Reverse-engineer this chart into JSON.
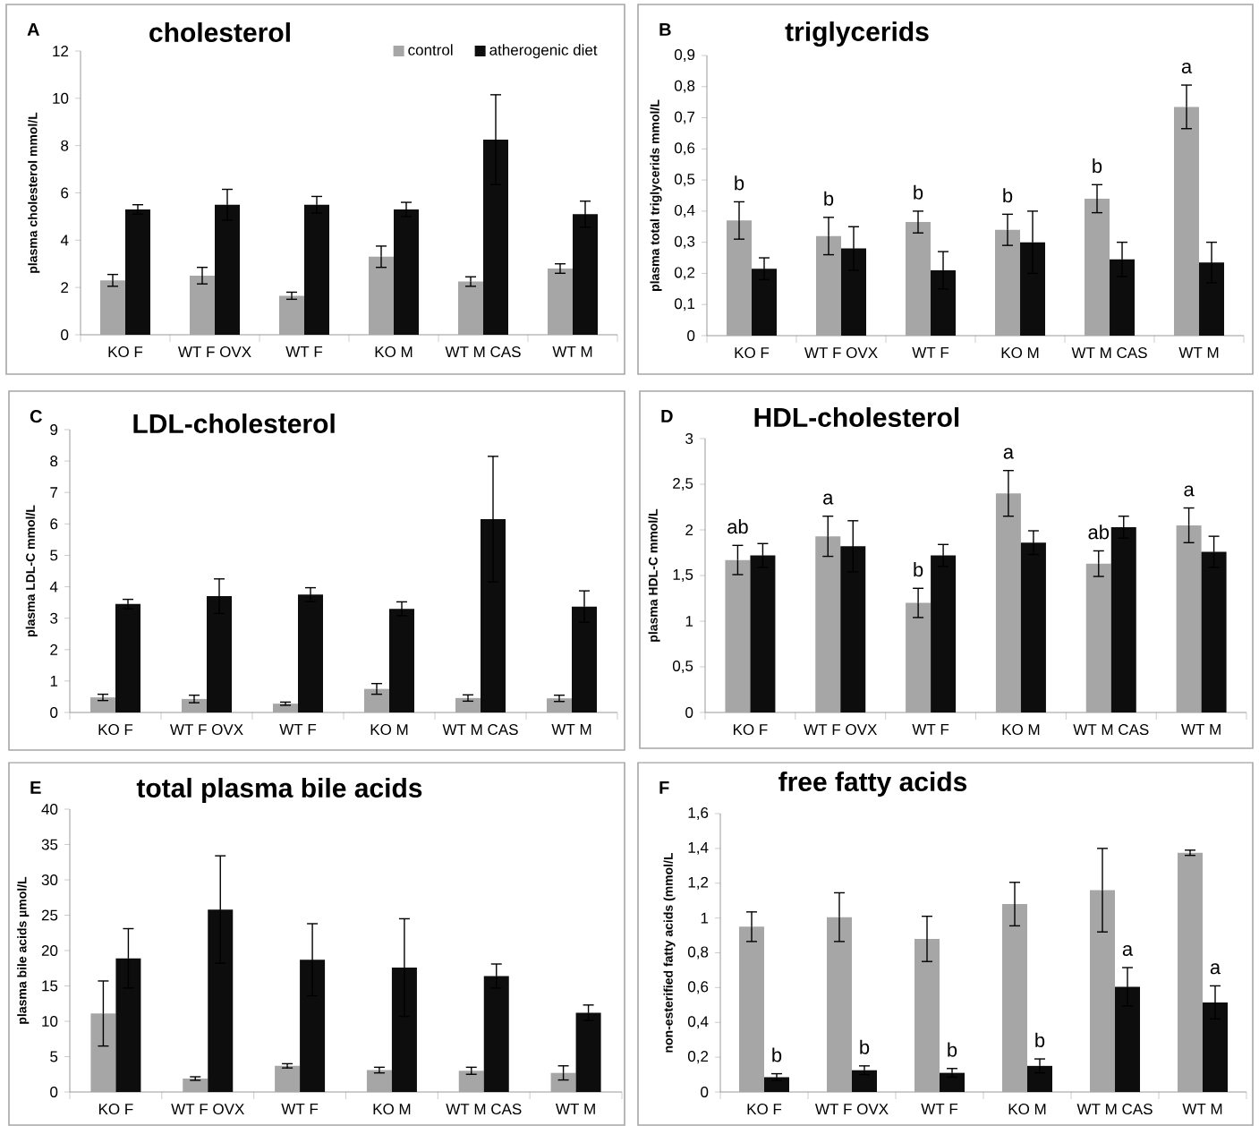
{
  "chart_data": [
    {
      "type": "bar",
      "title": "cholesterol",
      "ylabel": "plasma cholesterol mmol/L",
      "annotations": [
        "A"
      ],
      "categories": [
        "KO F",
        "WT F OVX",
        "WT F",
        "KO M",
        "WT M CAS",
        "WT M"
      ],
      "series": [
        {
          "name": "control",
          "color": "#a6a6a6",
          "values": [
            2.3,
            2.5,
            1.65,
            3.3,
            2.25,
            2.8
          ],
          "errors": [
            0.25,
            0.35,
            0.15,
            0.45,
            0.2,
            0.2
          ]
        },
        {
          "name": "atherogenic diet",
          "color": "#0d0d0d",
          "values": [
            5.3,
            5.5,
            5.5,
            5.3,
            8.25,
            5.1
          ],
          "errors": [
            0.2,
            0.65,
            0.35,
            0.3,
            1.9,
            0.55
          ]
        }
      ],
      "ylim": [
        0,
        12
      ],
      "yticks": [
        0,
        2,
        4,
        6,
        8,
        10,
        12
      ],
      "legend": "top right"
    },
    {
      "type": "bar",
      "title": "triglycerids",
      "ylabel": "plasma total triglycerids mmol/L",
      "annotations": [
        "B",
        {
          "text": "b",
          "x": "KO F",
          "y": 0.37
        },
        {
          "text": "b",
          "x": "WT F OVX",
          "y": 0.32
        },
        {
          "text": "b",
          "x": "WT F",
          "y": 0.365
        },
        {
          "text": "b",
          "x": "KO M",
          "y": 0.34
        },
        {
          "text": "b",
          "x": "WT M CAS",
          "y": 0.44
        },
        {
          "text": "a",
          "x": "WT M",
          "y": 0.735
        }
      ],
      "categories": [
        "KO F",
        "WT F OVX",
        "WT F",
        "KO M",
        "WT M CAS",
        "WT M"
      ],
      "series": [
        {
          "color": "#a6a6a6",
          "values": [
            0.37,
            0.32,
            0.365,
            0.34,
            0.44,
            0.735
          ],
          "errors": [
            0.06,
            0.06,
            0.035,
            0.05,
            0.045,
            0.07
          ]
        },
        {
          "color": "#0d0d0d",
          "values": [
            0.215,
            0.28,
            0.21,
            0.3,
            0.245,
            0.235
          ],
          "errors": [
            0.035,
            0.07,
            0.06,
            0.1,
            0.055,
            0.065
          ]
        }
      ],
      "ylim": [
        0,
        0.9
      ],
      "yticks": [
        0,
        {
          "value": 0.1,
          "label": "0,1"
        },
        {
          "value": 0.2,
          "label": "0,2"
        },
        {
          "value": 0.3,
          "label": "0,3"
        },
        {
          "value": 0.4,
          "label": "0,4"
        },
        {
          "value": 0.5,
          "label": "0,5"
        },
        {
          "value": 0.6,
          "label": "0,6"
        },
        {
          "value": 0.7,
          "label": "0,7"
        },
        {
          "value": 0.8,
          "label": "0,8"
        },
        {
          "value": 0.9,
          "label": "0,9"
        }
      ]
    },
    {
      "type": "bar",
      "title": "LDL-cholesterol",
      "ylabel": "plasma LDL-C mmol/L",
      "annotations": [
        "C"
      ],
      "categories": [
        "KO F",
        "WT F OVX",
        "WT F",
        "KO M",
        "WT M CAS",
        "WT M"
      ],
      "series": [
        {
          "color": "#a6a6a6",
          "values": [
            0.48,
            0.43,
            0.28,
            0.75,
            0.46,
            0.45
          ],
          "errors": [
            0.1,
            0.12,
            0.05,
            0.17,
            0.1,
            0.1
          ]
        },
        {
          "color": "#0d0d0d",
          "values": [
            3.45,
            3.7,
            3.75,
            3.3,
            6.15,
            3.37
          ],
          "errors": [
            0.15,
            0.55,
            0.22,
            0.22,
            2.0,
            0.5
          ]
        }
      ],
      "ylim": [
        0,
        9
      ],
      "yticks": [
        0,
        1,
        2,
        3,
        4,
        5,
        6,
        7,
        8,
        9
      ]
    },
    {
      "type": "bar",
      "title": "HDL-cholesterol",
      "ylabel": "plasma HDL-C mmol/L",
      "annotations": [
        "D",
        {
          "text": "ab",
          "x": "KO F",
          "y": 1.67
        },
        {
          "text": "a",
          "x": "WT F OVX",
          "y": 1.93
        },
        {
          "text": "b",
          "x": "WT F",
          "y": 1.2
        },
        {
          "text": "a",
          "x": "KO M",
          "y": 2.4
        },
        {
          "text": "ab",
          "x": "WT M CAS",
          "y": 1.63
        },
        {
          "text": "a",
          "x": "WT M",
          "y": 2.05
        }
      ],
      "categories": [
        "KO F",
        "WT F OVX",
        "WT F",
        "KO M",
        "WT M CAS",
        "WT M"
      ],
      "series": [
        {
          "color": "#a6a6a6",
          "values": [
            1.67,
            1.93,
            1.2,
            2.4,
            1.63,
            2.05
          ],
          "errors": [
            0.16,
            0.22,
            0.16,
            0.25,
            0.14,
            0.19
          ]
        },
        {
          "color": "#0d0d0d",
          "values": [
            1.72,
            1.82,
            1.72,
            1.86,
            2.03,
            1.76
          ],
          "errors": [
            0.13,
            0.28,
            0.12,
            0.13,
            0.12,
            0.17
          ]
        }
      ],
      "ylim": [
        0,
        3
      ],
      "yticks": [
        0,
        {
          "value": 0.5,
          "label": "0,5"
        },
        1,
        {
          "value": 1.5,
          "label": "1,5"
        },
        2,
        {
          "value": 2.5,
          "label": "2,5"
        },
        3
      ]
    },
    {
      "type": "bar",
      "title": "total plasma bile acids",
      "ylabel": "plasma bile acids µmol/L",
      "annotations": [
        "E"
      ],
      "categories": [
        "KO F",
        "WT F OVX",
        "WT F",
        "KO M",
        "WT M CAS",
        "WT M"
      ],
      "series": [
        {
          "color": "#a6a6a6",
          "values": [
            11.1,
            1.9,
            3.7,
            3.1,
            3.0,
            2.7
          ],
          "errors": [
            4.6,
            0.25,
            0.3,
            0.4,
            0.5,
            1.0
          ]
        },
        {
          "color": "#0d0d0d",
          "values": [
            18.9,
            25.8,
            18.7,
            17.6,
            16.4,
            11.2
          ],
          "errors": [
            4.2,
            7.6,
            5.1,
            6.9,
            1.7,
            1.1
          ]
        }
      ],
      "ylim": [
        0,
        40
      ],
      "yticks": [
        0,
        5,
        10,
        15,
        20,
        25,
        30,
        35,
        40
      ]
    },
    {
      "type": "bar",
      "title": "free fatty acids",
      "ylabel": "non-esterified fatty acids (mmol/L",
      "annotations": [
        "F",
        {
          "text": "b",
          "x": "KO F",
          "y": 0.085
        },
        {
          "text": "b",
          "x": "WT F OVX",
          "y": 0.125
        },
        {
          "text": "b",
          "x": "WT F",
          "y": 0.11
        },
        {
          "text": "b",
          "x": "KO M",
          "y": 0.15
        },
        {
          "text": "a",
          "x": "WT M CAS",
          "y": 0.605
        },
        {
          "text": "a",
          "x": "WT M",
          "y": 0.515
        }
      ],
      "categories": [
        "KO F",
        "WT F OVX",
        "WT F",
        "KO M",
        "WT M CAS",
        "WT M"
      ],
      "series": [
        {
          "color": "#a6a6a6",
          "values": [
            0.95,
            1.005,
            0.88,
            1.08,
            1.16,
            1.375
          ],
          "errors": [
            0.085,
            0.14,
            0.13,
            0.125,
            0.24,
            0.015
          ]
        },
        {
          "color": "#0d0d0d",
          "values": [
            0.085,
            0.125,
            0.11,
            0.15,
            0.605,
            0.515
          ],
          "errors": [
            0.02,
            0.025,
            0.025,
            0.04,
            0.11,
            0.095
          ]
        }
      ],
      "ylim": [
        0,
        1.6
      ],
      "yticks": [
        0,
        {
          "value": 0.2,
          "label": "0,2"
        },
        {
          "value": 0.4,
          "label": "0,4"
        },
        {
          "value": 0.6,
          "label": "0,6"
        },
        {
          "value": 0.8,
          "label": "0,8"
        },
        1,
        {
          "value": 1.2,
          "label": "1,2"
        },
        {
          "value": 1.4,
          "label": "1,4"
        },
        {
          "value": 1.6,
          "label": "1,6"
        }
      ]
    }
  ]
}
